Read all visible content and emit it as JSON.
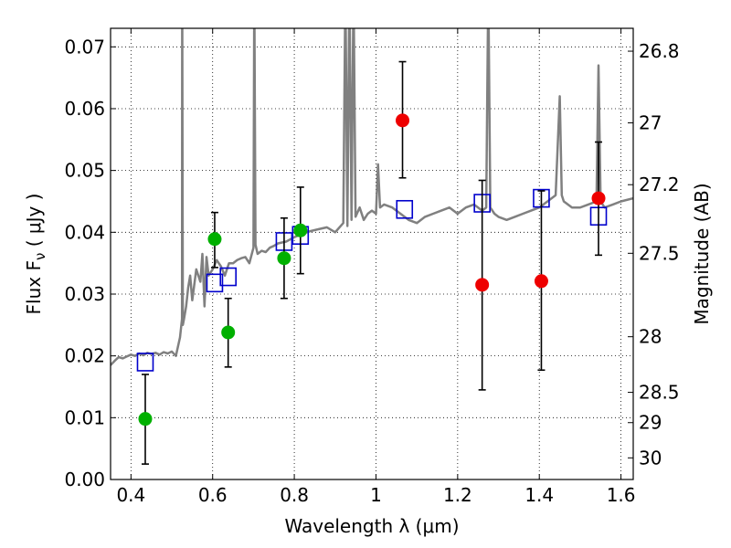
{
  "chart_data": {
    "type": "scatter",
    "xlabel": "Wavelength  λ (μm)",
    "ylabel": "Flux  F",
    "ylabel_sub": "ν",
    "ylabel_unit": "  ( μJy )",
    "y2label": "Magnitude (AB)",
    "xlim": [
      0.35,
      1.63
    ],
    "ylim": [
      0.0,
      0.073
    ],
    "grid": true,
    "x_ticks": [
      0.4,
      0.6,
      0.8,
      1.0,
      1.2,
      1.4,
      1.6
    ],
    "x_tick_labels": [
      "0.4",
      "0.6",
      "0.8",
      "1",
      "1.2",
      "1.4",
      "1.6"
    ],
    "y_ticks": [
      0.0,
      0.01,
      0.02,
      0.03,
      0.04,
      0.05,
      0.06,
      0.07
    ],
    "y_tick_labels": [
      "0.00",
      "0.01",
      "0.02",
      "0.03",
      "0.04",
      "0.05",
      "0.06",
      "0.07"
    ],
    "y2_ticks": [
      {
        "flux": 0.0693,
        "label": "26.8"
      },
      {
        "flux": 0.0577,
        "label": "27"
      },
      {
        "flux": 0.0477,
        "label": "27.2"
      },
      {
        "flux": 0.0366,
        "label": "27.5"
      },
      {
        "flux": 0.0231,
        "label": "28"
      },
      {
        "flux": 0.0141,
        "label": "28.5"
      },
      {
        "flux": 0.0092,
        "label": "29"
      },
      {
        "flux": 0.0035,
        "label": "30"
      }
    ],
    "colors": {
      "model": "#808080",
      "green": "#00b000",
      "red": "#ee0000",
      "box": "#0000cc",
      "error": "#000000"
    },
    "model_spectrum": {
      "x": [
        0.35,
        0.36,
        0.37,
        0.38,
        0.39,
        0.4,
        0.41,
        0.42,
        0.43,
        0.44,
        0.45,
        0.46,
        0.47,
        0.48,
        0.49,
        0.5,
        0.51,
        0.52,
        0.525,
        0.5255,
        0.527,
        0.53,
        0.535,
        0.54,
        0.545,
        0.55,
        0.56,
        0.57,
        0.575,
        0.58,
        0.585,
        0.59,
        0.6,
        0.61,
        0.62,
        0.63,
        0.64,
        0.65,
        0.66,
        0.67,
        0.68,
        0.69,
        0.7,
        0.702,
        0.705,
        0.71,
        0.72,
        0.73,
        0.74,
        0.75,
        0.76,
        0.78,
        0.8,
        0.82,
        0.84,
        0.86,
        0.88,
        0.9,
        0.92,
        0.925,
        0.93,
        0.935,
        0.94,
        0.945,
        0.95,
        0.96,
        0.97,
        0.98,
        0.99,
        1.0,
        1.005,
        1.01,
        1.02,
        1.04,
        1.06,
        1.08,
        1.1,
        1.12,
        1.14,
        1.16,
        1.18,
        1.2,
        1.22,
        1.24,
        1.26,
        1.27,
        1.275,
        1.28,
        1.29,
        1.3,
        1.32,
        1.34,
        1.36,
        1.38,
        1.4,
        1.42,
        1.44,
        1.45,
        1.455,
        1.46,
        1.47,
        1.48,
        1.5,
        1.52,
        1.54,
        1.545,
        1.55,
        1.56,
        1.58,
        1.6,
        1.63
      ],
      "y": [
        0.0185,
        0.0192,
        0.0198,
        0.0196,
        0.0199,
        0.0202,
        0.02,
        0.0204,
        0.0201,
        0.0205,
        0.0203,
        0.0205,
        0.0202,
        0.0206,
        0.0204,
        0.0207,
        0.02,
        0.023,
        0.026,
        0.08,
        0.025,
        0.026,
        0.028,
        0.031,
        0.033,
        0.029,
        0.034,
        0.032,
        0.0365,
        0.028,
        0.036,
        0.033,
        0.034,
        0.0355,
        0.0345,
        0.033,
        0.035,
        0.035,
        0.0355,
        0.0358,
        0.036,
        0.035,
        0.0375,
        0.08,
        0.038,
        0.0365,
        0.037,
        0.0368,
        0.0375,
        0.0378,
        0.0382,
        0.0385,
        0.0392,
        0.0398,
        0.0402,
        0.0405,
        0.0408,
        0.04,
        0.0415,
        0.08,
        0.041,
        0.08,
        0.042,
        0.08,
        0.0425,
        0.044,
        0.042,
        0.043,
        0.0435,
        0.043,
        0.051,
        0.044,
        0.0445,
        0.044,
        0.043,
        0.042,
        0.0415,
        0.0425,
        0.043,
        0.0435,
        0.044,
        0.043,
        0.044,
        0.0445,
        0.0435,
        0.044,
        0.08,
        0.044,
        0.043,
        0.0425,
        0.042,
        0.0425,
        0.043,
        0.0435,
        0.044,
        0.045,
        0.046,
        0.062,
        0.046,
        0.045,
        0.0445,
        0.044,
        0.044,
        0.0445,
        0.045,
        0.067,
        0.045,
        0.044,
        0.0445,
        0.045,
        0.0455
      ]
    },
    "model_photometry": {
      "x": [
        0.435,
        0.605,
        0.638,
        0.775,
        0.815,
        1.07,
        1.26,
        1.405,
        1.545
      ],
      "y": [
        0.019,
        0.0318,
        0.0328,
        0.0385,
        0.0395,
        0.0437,
        0.0447,
        0.0455,
        0.0426
      ]
    },
    "observed_green": {
      "x": [
        0.435,
        0.605,
        0.638,
        0.775,
        0.815
      ],
      "y": [
        0.0098,
        0.0389,
        0.0238,
        0.0358,
        0.0403
      ],
      "err_low": [
        0.0025,
        0.0343,
        0.0182,
        0.0293,
        0.0333
      ],
      "err_high": [
        0.017,
        0.0432,
        0.0293,
        0.0423,
        0.0473
      ]
    },
    "observed_red": {
      "x": [
        1.065,
        1.26,
        1.405,
        1.545
      ],
      "y": [
        0.0581,
        0.0315,
        0.0321,
        0.0455
      ],
      "err_low": [
        0.0488,
        0.0145,
        0.0177,
        0.0363
      ],
      "err_high": [
        0.0676,
        0.0484,
        0.0467,
        0.0546
      ]
    }
  }
}
